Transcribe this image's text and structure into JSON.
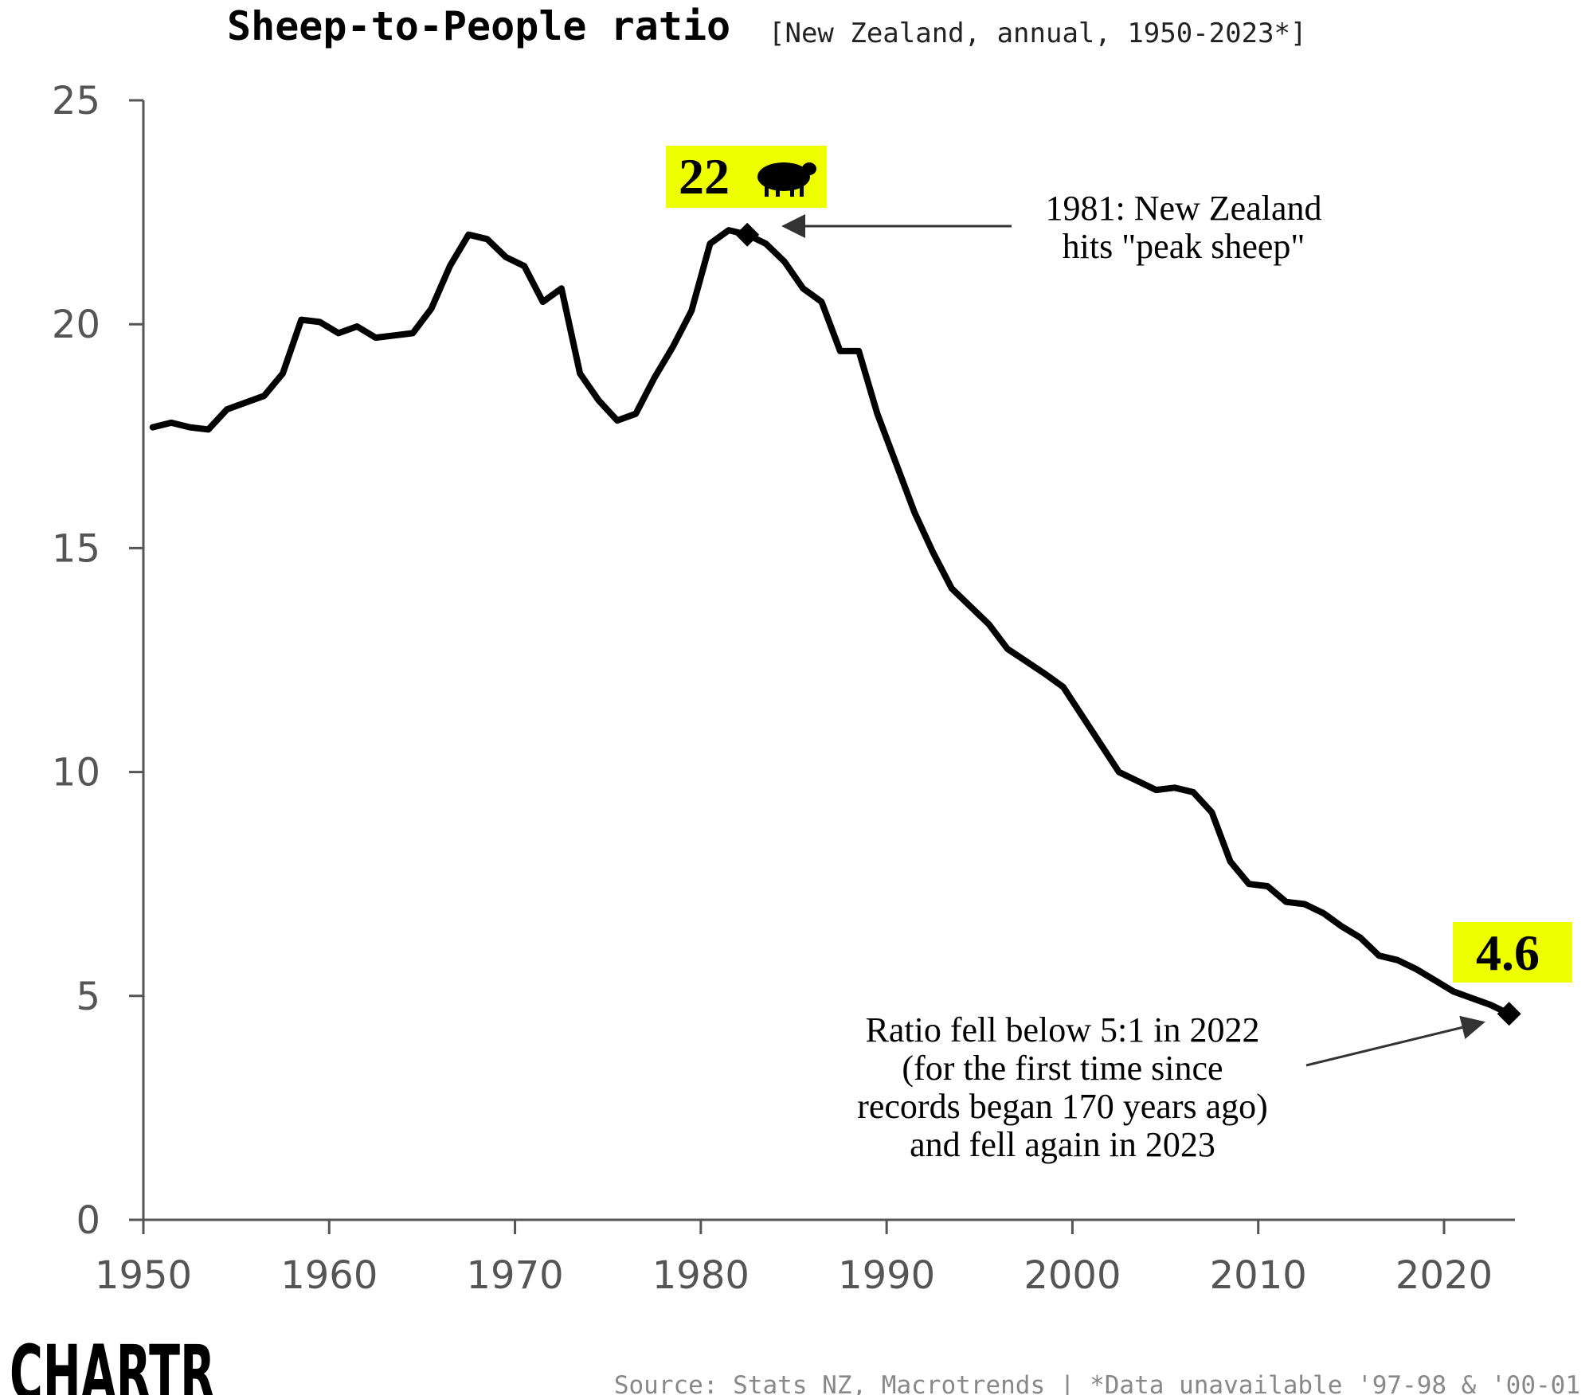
{
  "title": "Sheep-to-People ratio",
  "subtitle": "[New Zealand, annual, 1950-2023*]",
  "source": "Source: Stats NZ, Macrotrends | *Data unavailable '97-98 & '00-01",
  "logo": "CHARTR",
  "colors": {
    "line": "#000000",
    "highlight": "#eeff00",
    "axis": "#555555"
  },
  "chart_data": {
    "type": "line",
    "xlim": [
      1950,
      2024
    ],
    "ylim": [
      0,
      25
    ],
    "x_ticks": [
      "1950",
      "1960",
      "1970",
      "1980",
      "1990",
      "2000",
      "2010",
      "2020"
    ],
    "y_ticks": [
      "0",
      "5",
      "10",
      "15",
      "20",
      "25"
    ],
    "grid": false,
    "series": [
      {
        "points": [
          [
            1950.5,
            17.7
          ],
          [
            1951.5,
            17.8
          ],
          [
            1952.5,
            17.7
          ],
          [
            1953.5,
            17.65
          ],
          [
            1954.5,
            18.1
          ],
          [
            1955.5,
            18.25
          ],
          [
            1956.5,
            18.4
          ],
          [
            1957.5,
            18.9
          ],
          [
            1958.5,
            20.1
          ],
          [
            1959.5,
            20.05
          ],
          [
            1960.5,
            19.8
          ],
          [
            1961.5,
            19.95
          ],
          [
            1962.5,
            19.7
          ],
          [
            1963.5,
            19.75
          ],
          [
            1964.5,
            19.8
          ],
          [
            1965.5,
            20.35
          ],
          [
            1966.5,
            21.3
          ],
          [
            1967.5,
            22.0
          ],
          [
            1968.5,
            21.9
          ],
          [
            1969.5,
            21.5
          ],
          [
            1970.5,
            21.3
          ],
          [
            1971.5,
            20.5
          ],
          [
            1972.5,
            20.8
          ],
          [
            1973.5,
            18.9
          ],
          [
            1974.5,
            18.3
          ],
          [
            1975.5,
            17.85
          ],
          [
            1976.5,
            18.0
          ],
          [
            1977.5,
            18.8
          ],
          [
            1978.5,
            19.5
          ],
          [
            1979.5,
            20.3
          ],
          [
            1980.5,
            21.8
          ],
          [
            1981.5,
            22.1
          ],
          [
            1982.5,
            22.0
          ],
          [
            1983.5,
            21.8
          ],
          [
            1984.5,
            21.4
          ],
          [
            1985.5,
            20.8
          ],
          [
            1986.5,
            20.5
          ],
          [
            1987.5,
            19.4
          ],
          [
            1988.5,
            19.4
          ],
          [
            1989.5,
            18.0
          ],
          [
            1990.5,
            16.9
          ],
          [
            1991.5,
            15.8
          ],
          [
            1992.5,
            14.9
          ],
          [
            1993.5,
            14.1
          ],
          [
            1994.5,
            13.7
          ],
          [
            1995.5,
            13.3
          ],
          [
            1996.5,
            12.75
          ],
          [
            1998.5,
            12.2
          ],
          [
            1999.5,
            11.9
          ],
          [
            2002.5,
            10.0
          ],
          [
            2003.5,
            9.8
          ],
          [
            2004.5,
            9.6
          ],
          [
            2005.5,
            9.65
          ],
          [
            2006.5,
            9.55
          ],
          [
            2007.5,
            9.1
          ],
          [
            2008.5,
            8.0
          ],
          [
            2009.5,
            7.5
          ],
          [
            2010.5,
            7.45
          ],
          [
            2011.5,
            7.1
          ],
          [
            2012.5,
            7.05
          ],
          [
            2013.5,
            6.85
          ],
          [
            2014.5,
            6.55
          ],
          [
            2015.5,
            6.3
          ],
          [
            2016.5,
            5.9
          ],
          [
            2017.5,
            5.8
          ],
          [
            2018.5,
            5.6
          ],
          [
            2019.5,
            5.35
          ],
          [
            2020.5,
            5.1
          ],
          [
            2021.5,
            4.95
          ],
          [
            2022.5,
            4.8
          ],
          [
            2023.5,
            4.6
          ]
        ]
      }
    ],
    "highlights": [
      {
        "x": 1982.5,
        "y": 22.0,
        "label": "22"
      },
      {
        "x": 2023.5,
        "y": 4.6,
        "label": "4.6"
      }
    ],
    "annotations": [
      {
        "lines": [
          "1981: New Zealand",
          "hits \"peak sheep\""
        ]
      },
      {
        "lines": [
          "Ratio fell below 5:1 in 2022",
          "(for the first time since",
          "records began 170 years ago)",
          "and fell again in 2023"
        ]
      }
    ]
  }
}
